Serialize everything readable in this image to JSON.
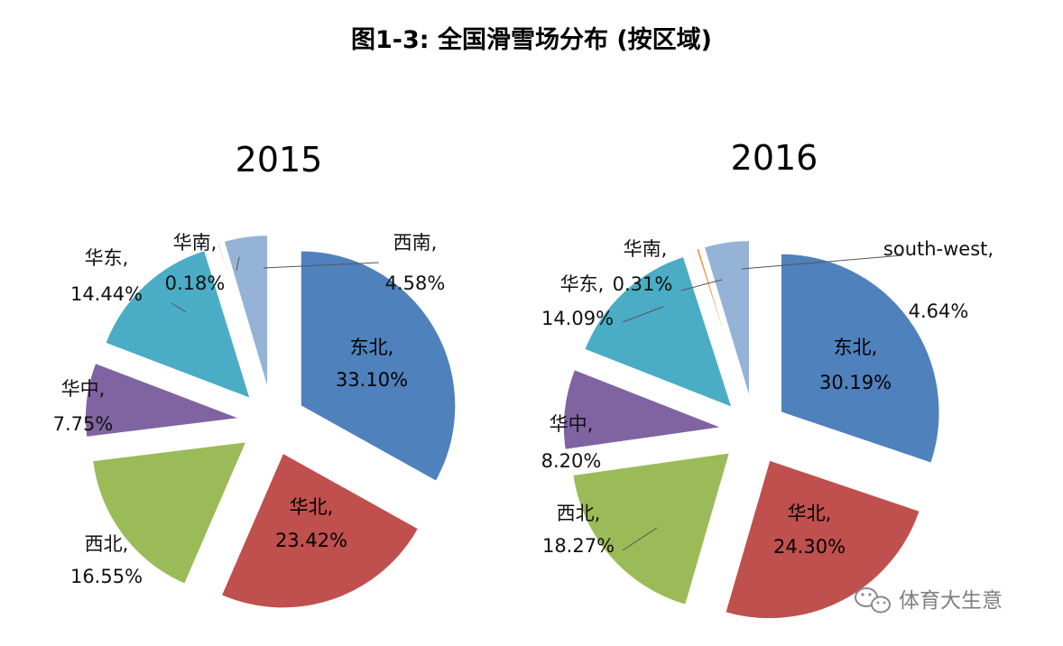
{
  "chart_data": [
    {
      "type": "pie",
      "title": "2015",
      "slices": [
        {
          "name": "东北",
          "value": 33.1,
          "label": "33.10%",
          "color": "#4f81bd"
        },
        {
          "name": "华北",
          "value": 23.42,
          "label": "23.42%",
          "color": "#c0504d"
        },
        {
          "name": "西北",
          "value": 16.55,
          "label": "16.55%",
          "color": "#9bbb59"
        },
        {
          "name": "华中",
          "value": 7.75,
          "label": "7.75%",
          "color": "#8064a2"
        },
        {
          "name": "华东",
          "value": 14.44,
          "label": "14.44%",
          "color": "#4bacc6"
        },
        {
          "name": "华南",
          "value": 0.18,
          "label": "0.18%",
          "color": "#f79646"
        },
        {
          "name": "西南",
          "value": 4.58,
          "label": "4.58%",
          "color": "#95b3d7"
        }
      ]
    },
    {
      "type": "pie",
      "title": "2016",
      "slices": [
        {
          "name": "东北",
          "value": 30.19,
          "label": "30.19%",
          "color": "#4f81bd"
        },
        {
          "name": "华北",
          "value": 24.3,
          "label": "24.30%",
          "color": "#c0504d"
        },
        {
          "name": "西北",
          "value": 18.27,
          "label": "18.27%",
          "color": "#9bbb59"
        },
        {
          "name": "华中",
          "value": 8.2,
          "label": "8.20%",
          "color": "#8064a2"
        },
        {
          "name": "华东",
          "value": 14.09,
          "label": "14.09%",
          "color": "#4bacc6"
        },
        {
          "name": "华南",
          "value": 0.31,
          "label": "0.31%",
          "color": "#f79646"
        },
        {
          "name": "south-west",
          "value": 4.64,
          "label": "4.64%",
          "color": "#95b3d7"
        }
      ]
    }
  ],
  "figure_title": "图1-3: 全国滑雪场分布 (按区域)",
  "watermark": "体育大生意"
}
